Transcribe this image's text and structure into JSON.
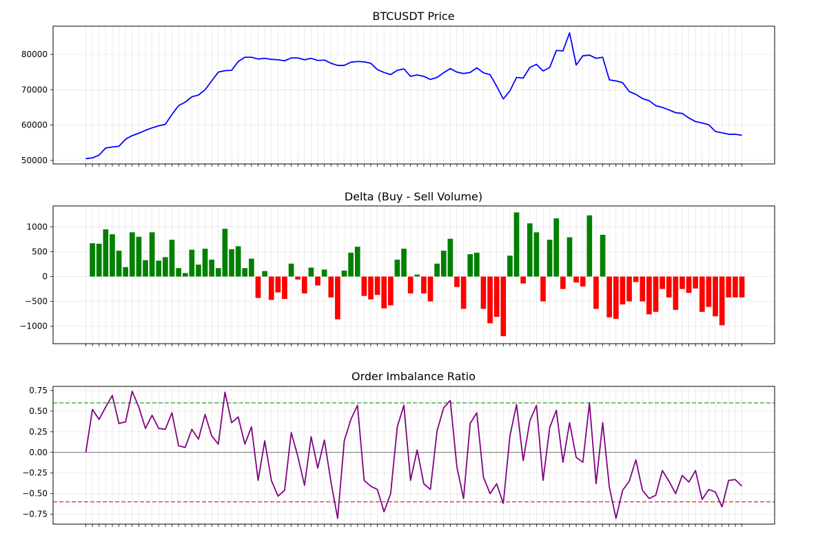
{
  "chart_data": [
    {
      "type": "line",
      "title": "BTCUSDT Price",
      "xlabel": "",
      "ylabel": "",
      "ylim": [
        49000,
        88000
      ],
      "yticks": [
        50000,
        60000,
        70000,
        80000
      ],
      "ytick_labels": [
        "50000",
        "60000",
        "70000",
        "80000"
      ],
      "grid": true,
      "series": [
        {
          "color": "#0000ff",
          "values": [
            50500,
            50700,
            51500,
            53500,
            53800,
            54000,
            56000,
            57000,
            57700,
            58500,
            59200,
            59800,
            60200,
            63000,
            65500,
            66500,
            68000,
            68500,
            70000,
            72500,
            75000,
            75400,
            75500,
            78000,
            79200,
            79200,
            78700,
            78900,
            78600,
            78500,
            78200,
            79000,
            79000,
            78500,
            78900,
            78300,
            78400,
            77500,
            76900,
            76900,
            77800,
            78000,
            77900,
            77500,
            75700,
            74900,
            74300,
            75500,
            75900,
            73800,
            74200,
            73800,
            72900,
            73500,
            74800,
            76000,
            75000,
            74600,
            74900,
            76200,
            74800,
            74300,
            71000,
            67400,
            69700,
            73500,
            73300,
            76300,
            77200,
            75300,
            76300,
            81100,
            81000,
            86100,
            77000,
            79600,
            79800,
            78900,
            79200,
            72800,
            72500,
            72000,
            69500,
            68700,
            67500,
            66900,
            65500,
            65000,
            64300,
            63500,
            63300,
            62000,
            61000,
            60600,
            60100,
            58200,
            57800,
            57400,
            57400,
            57100
          ]
        }
      ]
    },
    {
      "type": "bar",
      "title": "Delta (Buy - Sell Volume)",
      "xlabel": "",
      "ylabel": "",
      "ylim": [
        -1350,
        1420
      ],
      "yticks": [
        -1000,
        -500,
        0,
        500,
        1000
      ],
      "ytick_labels": [
        "−1000",
        "−500",
        "0",
        "500",
        "1000"
      ],
      "grid": true,
      "positive_color": "#008000",
      "negative_color": "#ff0000",
      "values": [
        0,
        670,
        660,
        950,
        850,
        520,
        190,
        890,
        800,
        330,
        890,
        320,
        390,
        740,
        170,
        70,
        540,
        240,
        560,
        340,
        170,
        960,
        550,
        610,
        170,
        360,
        -430,
        110,
        -470,
        -320,
        -450,
        260,
        -60,
        -340,
        180,
        -180,
        140,
        -420,
        -860,
        120,
        480,
        600,
        -390,
        -460,
        -370,
        -640,
        -580,
        340,
        560,
        -340,
        40,
        -340,
        -500,
        260,
        520,
        760,
        -210,
        -650,
        450,
        480,
        -650,
        -940,
        -810,
        -1200,
        420,
        1290,
        -140,
        1070,
        890,
        -500,
        740,
        1170,
        -250,
        790,
        -120,
        -200,
        1230,
        -650,
        840,
        -820,
        -850,
        -560,
        -500,
        -110,
        -500,
        -760,
        -710,
        -250,
        -420,
        -670,
        -250,
        -330,
        -240,
        -710,
        -610,
        -800,
        -980,
        -420,
        -420,
        -420
      ]
    },
    {
      "type": "line",
      "title": "Order Imbalance Ratio",
      "xlabel": "",
      "ylabel": "",
      "ylim": [
        -0.87,
        0.8
      ],
      "yticks": [
        -0.75,
        -0.5,
        -0.25,
        0.0,
        0.25,
        0.5,
        0.75
      ],
      "ytick_labels": [
        "−0.75",
        "−0.50",
        "−0.25",
        "0.00",
        "0.25",
        "0.50",
        "0.75"
      ],
      "grid": true,
      "reference_lines": [
        {
          "y": 0.6,
          "color": "#2ca02c",
          "style": "dashed"
        },
        {
          "y": -0.6,
          "color": "#d62728",
          "style": "dashed"
        },
        {
          "y": 0.0,
          "color": "#808080",
          "style": "solid"
        }
      ],
      "series": [
        {
          "color": "#800080",
          "values": [
            0.0,
            0.52,
            0.4,
            0.55,
            0.69,
            0.35,
            0.37,
            0.74,
            0.55,
            0.29,
            0.45,
            0.29,
            0.28,
            0.48,
            0.08,
            0.06,
            0.28,
            0.16,
            0.46,
            0.2,
            0.1,
            0.73,
            0.36,
            0.43,
            0.1,
            0.31,
            -0.34,
            0.14,
            -0.34,
            -0.53,
            -0.46,
            0.24,
            -0.05,
            -0.4,
            0.19,
            -0.19,
            0.15,
            -0.36,
            -0.8,
            0.14,
            0.4,
            0.57,
            -0.34,
            -0.41,
            -0.45,
            -0.72,
            -0.5,
            0.31,
            0.57,
            -0.34,
            0.03,
            -0.38,
            -0.45,
            0.26,
            0.54,
            0.63,
            -0.18,
            -0.56,
            0.35,
            0.48,
            -0.3,
            -0.5,
            -0.38,
            -0.62,
            0.2,
            0.58,
            -0.1,
            0.38,
            0.57,
            -0.34,
            0.3,
            0.51,
            -0.12,
            0.36,
            -0.06,
            -0.12,
            0.6,
            -0.38,
            0.36,
            -0.42,
            -0.8,
            -0.46,
            -0.35,
            -0.09,
            -0.46,
            -0.56,
            -0.52,
            -0.22,
            -0.35,
            -0.5,
            -0.28,
            -0.36,
            -0.22,
            -0.57,
            -0.45,
            -0.48,
            -0.66,
            -0.34,
            -0.33,
            -0.41
          ]
        }
      ]
    }
  ]
}
